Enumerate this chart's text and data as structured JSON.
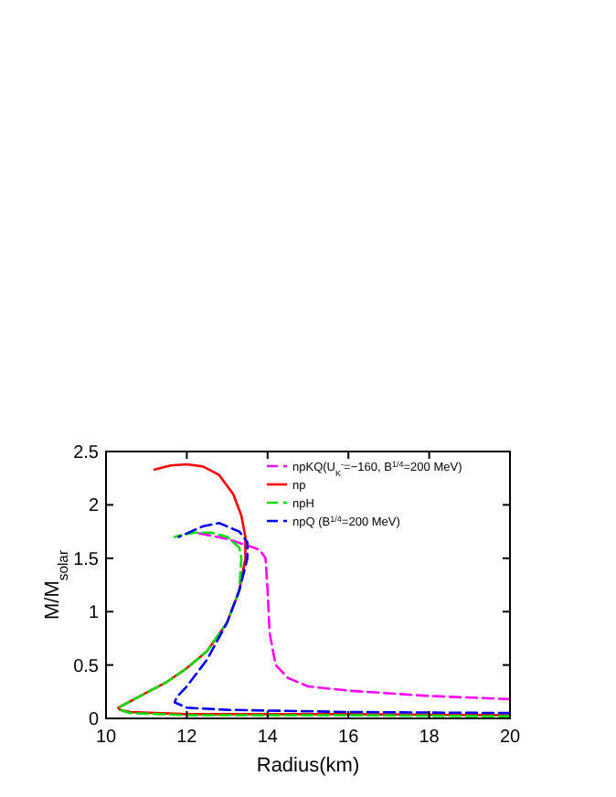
{
  "chart_data": {
    "type": "line",
    "xlabel": "Radius(km)",
    "ylabel": "M/M$_{solar}$",
    "xlim": [
      10,
      20
    ],
    "xticks": [
      10,
      12,
      14,
      16,
      18,
      20
    ],
    "ylim": [
      0,
      2.5
    ],
    "yticks": [
      0,
      0.5,
      1,
      1.5,
      2,
      2.5
    ],
    "grid": false,
    "legend": "top right",
    "series": [
      {
        "name": "npKQ(U$_{K}$$^{-}$=−160, B$^{1/4}$=200 MeV)",
        "color": "#ff00ff",
        "line_style": "dashed",
        "x": [
          20,
          18,
          16,
          15,
          14.5,
          14.2,
          14.05,
          14.0,
          13.95,
          13.8,
          13.5,
          13.0,
          12.5,
          12.2
        ],
        "values": [
          0.18,
          0.21,
          0.26,
          0.3,
          0.38,
          0.5,
          0.8,
          1.2,
          1.5,
          1.58,
          1.62,
          1.68,
          1.72,
          1.74
        ]
      },
      {
        "name": "np",
        "color": "#ff0000",
        "line_style": "solid",
        "x": [
          20,
          16,
          12,
          10.6,
          10.35,
          10.3,
          10.6,
          11,
          11.5,
          12,
          12.5,
          13,
          13.3,
          13.45,
          13.45,
          13.35,
          13.15,
          12.8,
          12.4,
          12,
          11.6,
          11.2
        ],
        "values": [
          0.03,
          0.04,
          0.04,
          0.06,
          0.08,
          0.1,
          0.16,
          0.24,
          0.34,
          0.47,
          0.63,
          0.9,
          1.2,
          1.5,
          1.7,
          1.9,
          2.1,
          2.28,
          2.36,
          2.38,
          2.37,
          2.33
        ]
      },
      {
        "name": "npH",
        "color": "#00dd00",
        "line_style": "dashed",
        "x": [
          20,
          16,
          12,
          10.6,
          10.35,
          10.3,
          10.6,
          11,
          11.5,
          12,
          12.5,
          13,
          13.3,
          13.35,
          13.3,
          13.0,
          12.6,
          12.2,
          11.9,
          11.7
        ],
        "values": [
          0.02,
          0.03,
          0.03,
          0.05,
          0.08,
          0.1,
          0.16,
          0.24,
          0.34,
          0.47,
          0.63,
          0.9,
          1.2,
          1.5,
          1.6,
          1.7,
          1.74,
          1.74,
          1.72,
          1.7
        ]
      },
      {
        "name": "npQ  (B$^{1/4}$=200 MeV)",
        "color": "#0000ff",
        "line_style": "dashed",
        "x": [
          20,
          16,
          13,
          12,
          11.7,
          11.75,
          12,
          12.5,
          13,
          13.3,
          13.5,
          13.5,
          13.3,
          12.8,
          12.4,
          12.1,
          11.8
        ],
        "values": [
          0.05,
          0.06,
          0.08,
          0.1,
          0.15,
          0.2,
          0.3,
          0.55,
          0.9,
          1.2,
          1.5,
          1.65,
          1.75,
          1.83,
          1.8,
          1.75,
          1.7
        ]
      }
    ]
  }
}
